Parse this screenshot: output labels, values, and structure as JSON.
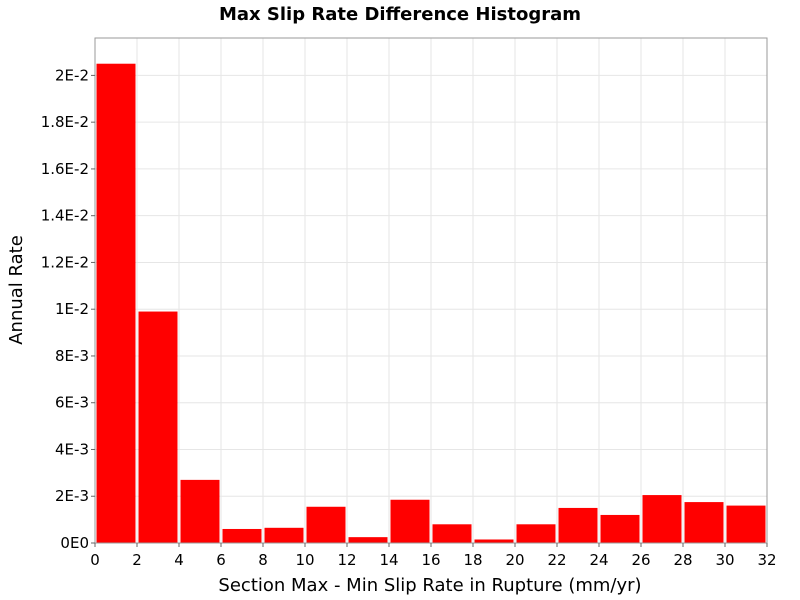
{
  "chart_data": {
    "type": "bar",
    "title": "Max Slip Rate Difference Histogram",
    "xlabel": "Section Max - Min Slip Rate in Rupture (mm/yr)",
    "ylabel": "Annual Rate",
    "xlim": [
      0,
      32
    ],
    "ylim": [
      0,
      0.0216
    ],
    "grid": true,
    "bar_color": "#ff0000",
    "bin_width": 2,
    "x_ticks": [
      0,
      2,
      4,
      6,
      8,
      10,
      12,
      14,
      16,
      18,
      20,
      22,
      24,
      26,
      28,
      30,
      32
    ],
    "x_tick_labels": [
      "0",
      "2",
      "4",
      "6",
      "8",
      "10",
      "12",
      "14",
      "16",
      "18",
      "20",
      "22",
      "24",
      "26",
      "28",
      "30",
      "32"
    ],
    "y_ticks": [
      0,
      0.002,
      0.004,
      0.006,
      0.008,
      0.01,
      0.012,
      0.014,
      0.016,
      0.018,
      0.02
    ],
    "y_tick_labels": [
      "0E0",
      "2E-3",
      "4E-3",
      "6E-3",
      "8E-3",
      "1E-2",
      "1.2E-2",
      "1.4E-2",
      "1.6E-2",
      "1.8E-2",
      "2E-2"
    ],
    "bins": [
      {
        "x_start": 0,
        "x_end": 2,
        "value": 0.0205
      },
      {
        "x_start": 2,
        "x_end": 4,
        "value": 0.0099
      },
      {
        "x_start": 4,
        "x_end": 6,
        "value": 0.0027
      },
      {
        "x_start": 6,
        "x_end": 8,
        "value": 0.0006
      },
      {
        "x_start": 8,
        "x_end": 10,
        "value": 0.00065
      },
      {
        "x_start": 10,
        "x_end": 12,
        "value": 0.00155
      },
      {
        "x_start": 12,
        "x_end": 14,
        "value": 0.00025
      },
      {
        "x_start": 14,
        "x_end": 16,
        "value": 0.00185
      },
      {
        "x_start": 16,
        "x_end": 18,
        "value": 0.0008
      },
      {
        "x_start": 18,
        "x_end": 20,
        "value": 0.00015
      },
      {
        "x_start": 20,
        "x_end": 22,
        "value": 0.0008
      },
      {
        "x_start": 22,
        "x_end": 24,
        "value": 0.0015
      },
      {
        "x_start": 24,
        "x_end": 26,
        "value": 0.0012
      },
      {
        "x_start": 26,
        "x_end": 28,
        "value": 0.00205
      },
      {
        "x_start": 28,
        "x_end": 30,
        "value": 0.00175
      },
      {
        "x_start": 30,
        "x_end": 32,
        "value": 0.0016
      }
    ]
  }
}
